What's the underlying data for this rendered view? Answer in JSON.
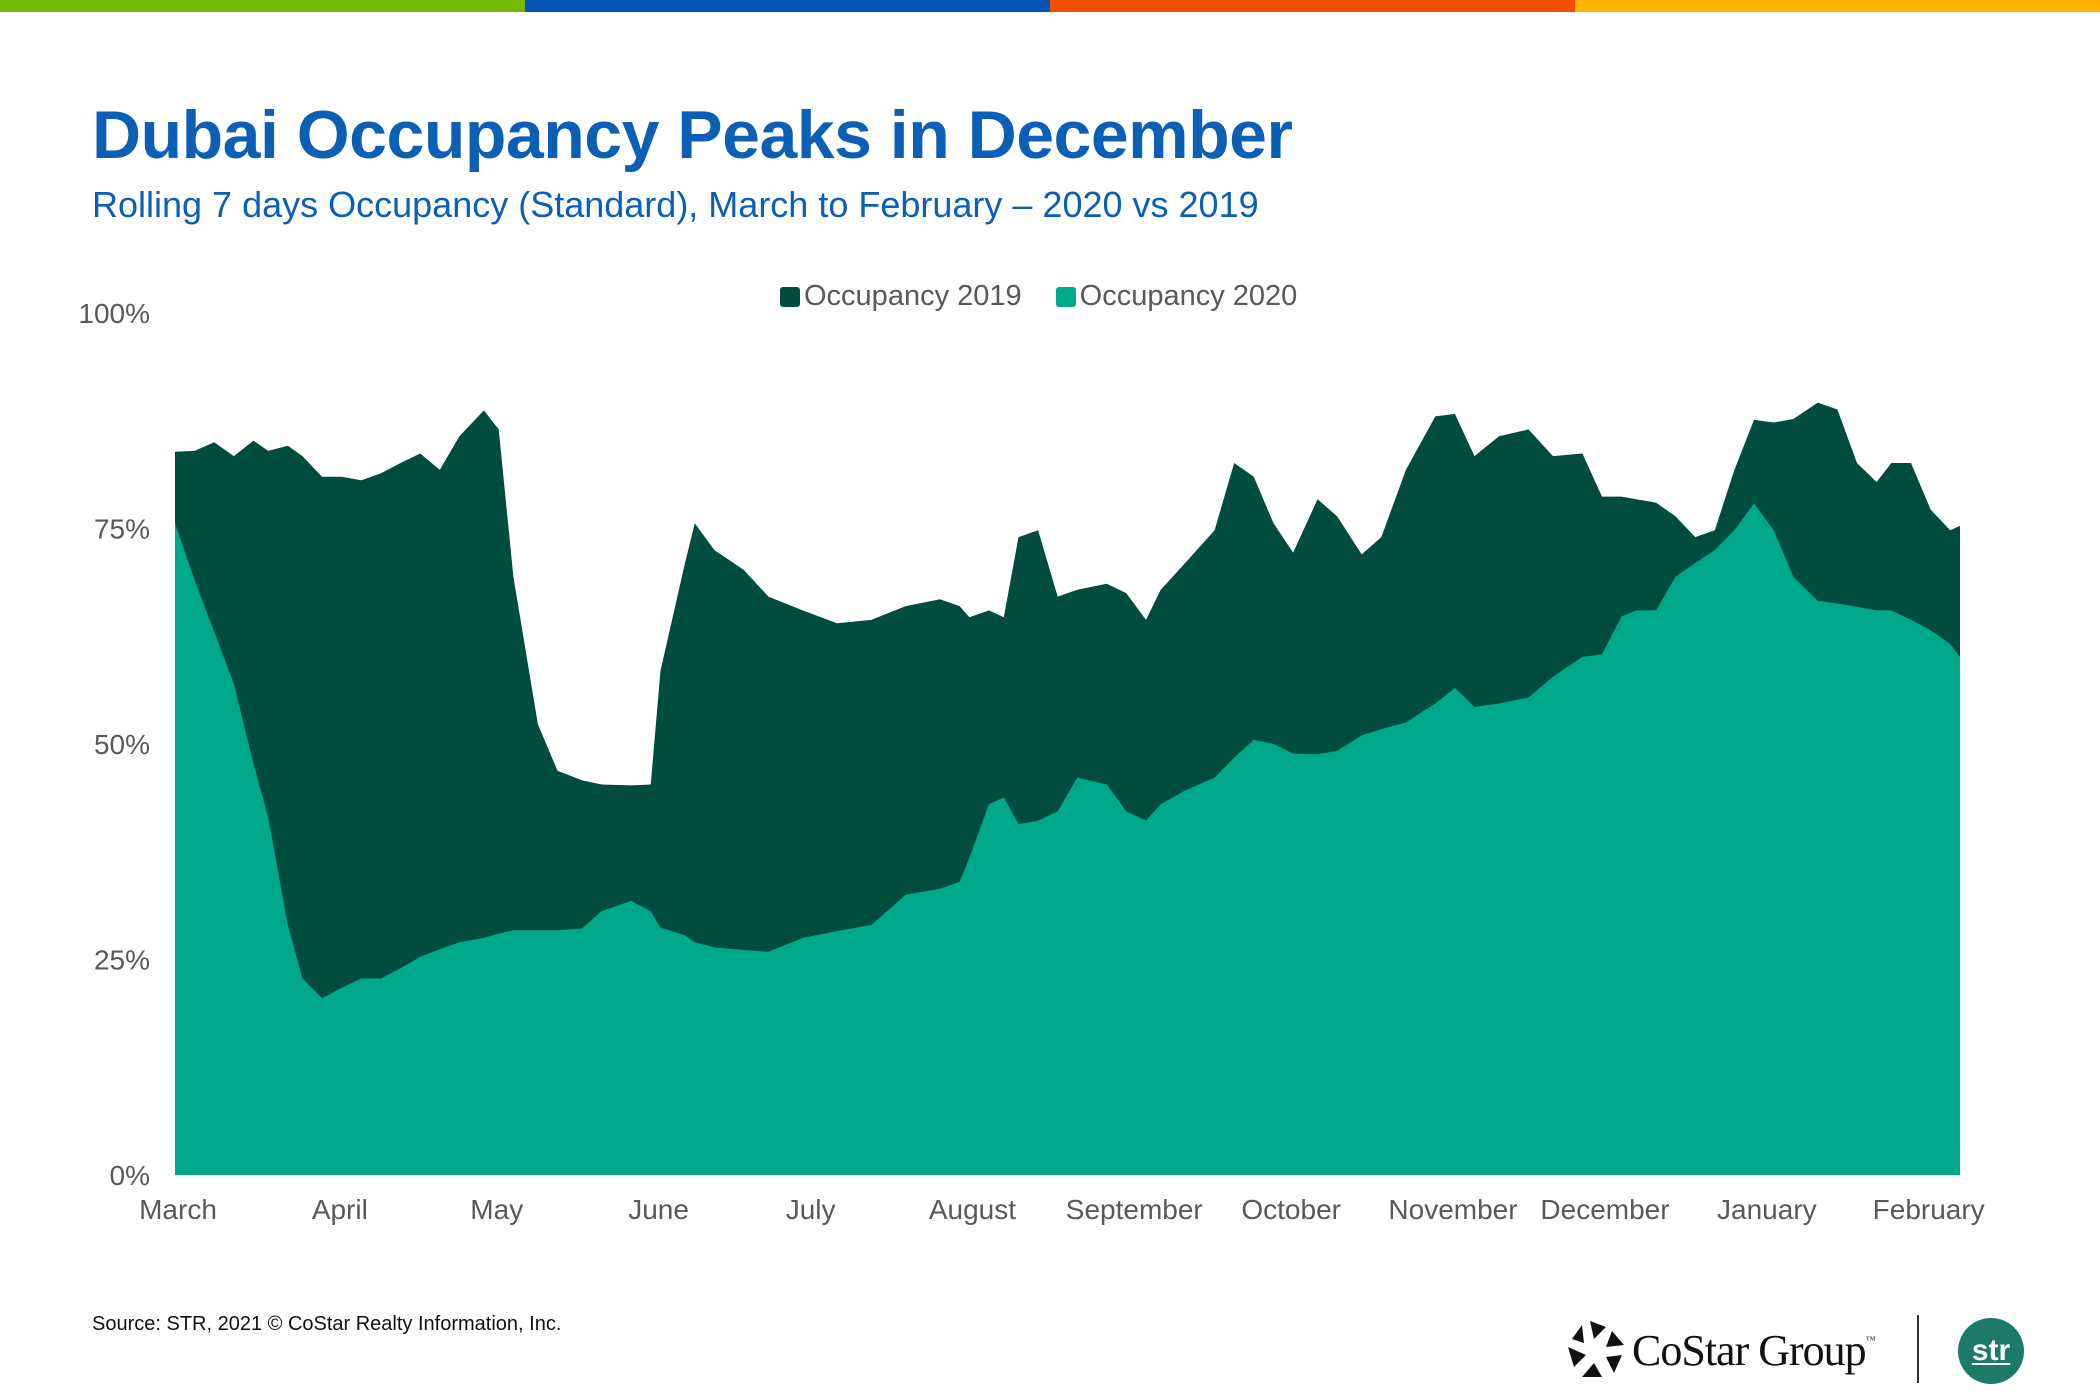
{
  "colors": {
    "bar": [
      "#76b900",
      "#0655b3",
      "#f24d00",
      "#ffb300"
    ],
    "title": "#0b5fb4",
    "series_2019": "#004d40",
    "series_2020": "#00a88a",
    "axis_text": "#595959"
  },
  "header": {
    "title": "Dubai Occupancy Peaks in December",
    "subtitle": "Rolling 7 days Occupancy (Standard), March to February – 2020 vs 2019"
  },
  "footer": {
    "source": "Source: STR, 2021 © CoStar Realty Information, Inc.",
    "costar_logo_text": "CoStar Group",
    "costar_tm": "™",
    "costar_icon": "costar-star-icon",
    "str_logo_text": "str"
  },
  "chart_data": {
    "type": "area",
    "title": "Dubai Occupancy Peaks in December",
    "subtitle": "Rolling 7 days Occupancy (Standard), March to February – 2020 vs 2019",
    "xlabel": "",
    "ylabel": "",
    "x_unit": "day index from start of March (0–364)",
    "xlim": [
      0,
      364
    ],
    "ylim": [
      0,
      100
    ],
    "y_ticks": [
      0,
      25,
      50,
      75,
      100
    ],
    "y_tick_labels": [
      "0%",
      "25%",
      "50%",
      "75%",
      "100%"
    ],
    "x_ticks": [
      0,
      33,
      65,
      98,
      129,
      162,
      195,
      227,
      260,
      291,
      324,
      357
    ],
    "x_tick_labels": [
      "March",
      "April",
      "May",
      "June",
      "July",
      "August",
      "September",
      "October",
      "November",
      "December",
      "January",
      "February"
    ],
    "grid": false,
    "legend_position": "top-center",
    "x": [
      0,
      4,
      8,
      12,
      16,
      19,
      23,
      26,
      30,
      34,
      38,
      42,
      46,
      50,
      54,
      58,
      63,
      66,
      69,
      74,
      78,
      83,
      87,
      93,
      97,
      99,
      104,
      106,
      110,
      116,
      121,
      128,
      135,
      142,
      149,
      156,
      160,
      162,
      166,
      169,
      172,
      176,
      180,
      184,
      190,
      194,
      198,
      201,
      206,
      212,
      216,
      220,
      224,
      228,
      233,
      237,
      242,
      246,
      251,
      257,
      261,
      265,
      270,
      276,
      281,
      287,
      291,
      295,
      298,
      302,
      306,
      310,
      314,
      318,
      322,
      326,
      330,
      335,
      339,
      343,
      347,
      350,
      354,
      358,
      362,
      364
    ],
    "series": [
      {
        "name": "Occupancy 2019",
        "values": [
          83.9,
          84,
          85,
          83.4,
          85.2,
          84,
          84.6,
          83.4,
          81,
          81,
          80.6,
          81.4,
          82.6,
          83.7,
          81.8,
          85.7,
          88.7,
          86.5,
          69.4,
          52.3,
          46.9,
          45.8,
          45.3,
          45.2,
          45.3,
          58.5,
          71,
          75.6,
          72.5,
          70.2,
          67.1,
          65.5,
          64,
          64.4,
          66,
          66.8,
          66,
          64.7,
          65.5,
          64.7,
          74,
          74.8,
          67.1,
          67.9,
          68.6,
          67.5,
          64.4,
          67.9,
          71,
          74.8,
          82.6,
          81,
          75.6,
          72.2,
          78.4,
          76.4,
          72,
          74,
          81.8,
          88,
          88.3,
          83.4,
          85.7,
          86.5,
          83.4,
          83.7,
          78.7,
          78.7,
          78.4,
          78,
          76.4,
          74,
          74.8,
          81.8,
          87.6,
          87.3,
          87.7,
          89.6,
          88.8,
          82.6,
          80.4,
          82.6,
          82.6,
          77.2,
          74.8,
          75.3
        ]
      },
      {
        "name": "Occupancy 2020",
        "values": [
          75.6,
          69,
          63,
          57,
          47.7,
          41.5,
          29,
          22.8,
          20.5,
          21.7,
          22.8,
          22.8,
          24,
          25.3,
          26.2,
          27,
          27.5,
          28,
          28.4,
          28.4,
          28.4,
          28.6,
          30.6,
          31.8,
          30.6,
          28.7,
          27.8,
          27,
          26.4,
          26.1,
          25.9,
          27.5,
          28.3,
          29,
          32.5,
          33.2,
          34,
          36.8,
          43,
          43.8,
          40.7,
          41.1,
          42.2,
          46.1,
          45.3,
          42.2,
          41.1,
          43,
          44.6,
          46.1,
          48.4,
          50.5,
          50,
          48.9,
          48.8,
          49.2,
          51,
          51.7,
          52.5,
          54.7,
          56.5,
          54.3,
          54.7,
          55.4,
          57.8,
          60.1,
          60.4,
          64.8,
          65.5,
          65.5,
          69.4,
          71,
          72.5,
          74.8,
          77.9,
          74.8,
          69.4,
          66.6,
          66.3,
          65.9,
          65.5,
          65.5,
          64.4,
          63.2,
          61.6,
          60.1
        ]
      }
    ]
  }
}
